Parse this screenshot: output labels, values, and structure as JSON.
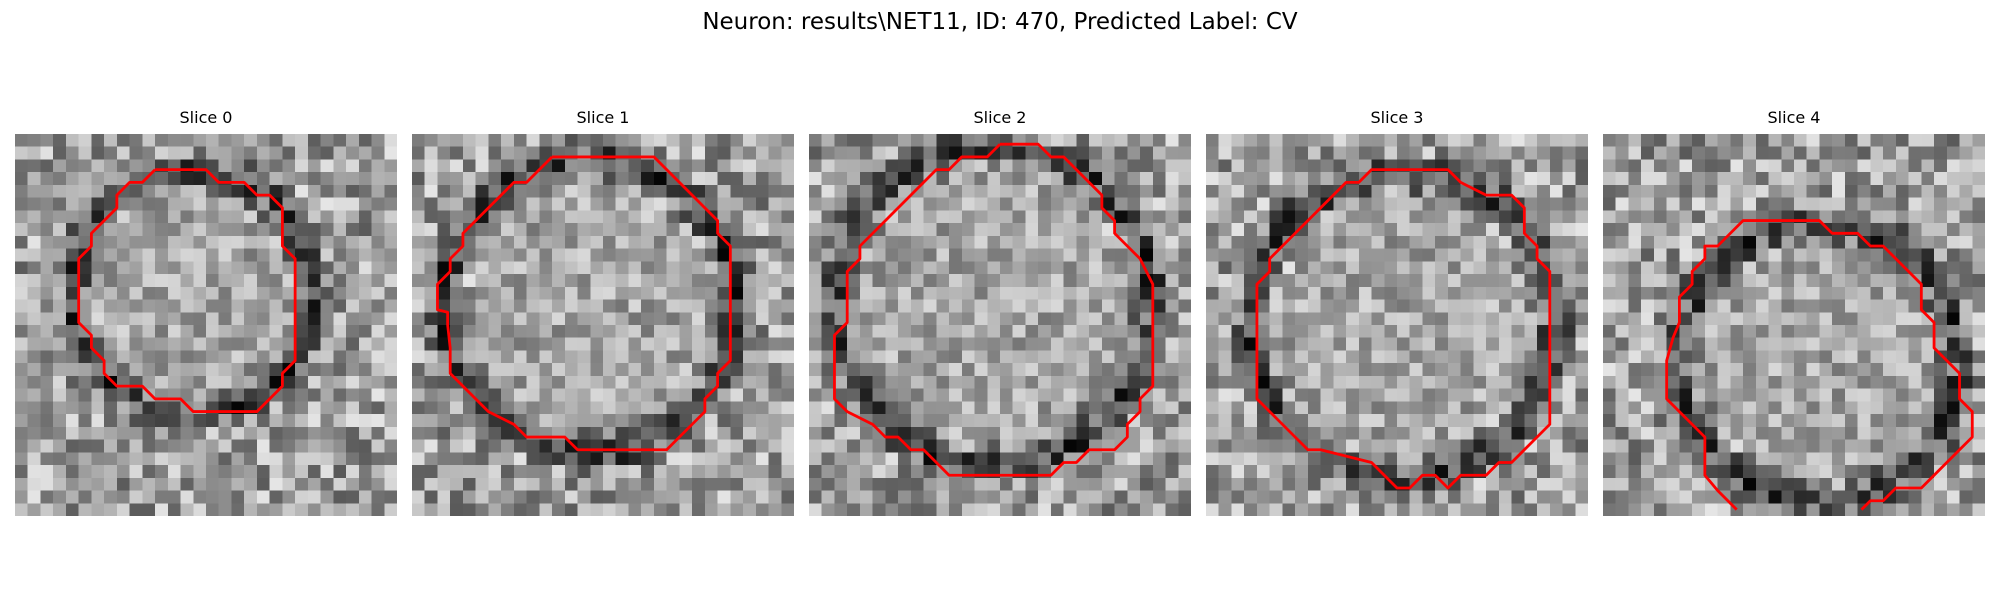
{
  "figure": {
    "title": "Neuron: results\\NET11, ID: 470, Predicted Label: CV"
  },
  "colors": {
    "contour": "#ff0000",
    "background": "#ffffff"
  },
  "panels": [
    {
      "title": "Slice 0"
    },
    {
      "title": "Slice 1"
    },
    {
      "title": "Slice 2"
    },
    {
      "title": "Slice 3"
    },
    {
      "title": "Slice 4"
    }
  ]
}
